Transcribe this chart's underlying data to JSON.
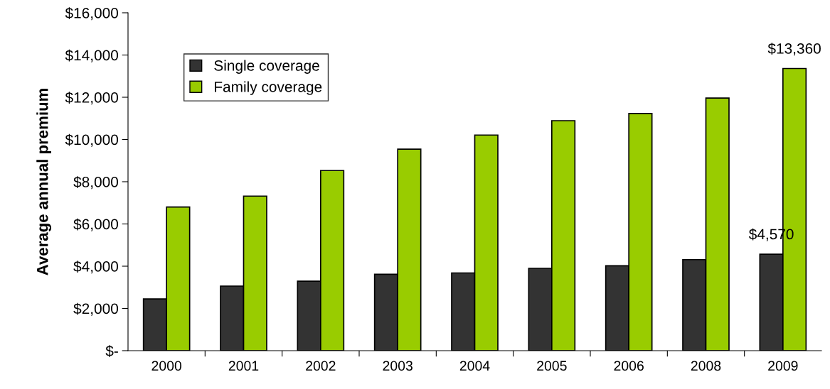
{
  "chart_data": {
    "type": "bar",
    "ylabel": "Average annual premium",
    "categories": [
      "2000",
      "2001",
      "2002",
      "2003",
      "2004",
      "2005",
      "2006",
      "2008",
      "2009"
    ],
    "series": [
      {
        "name": "Single coverage",
        "color": "#333333",
        "values": [
          2450,
          3060,
          3290,
          3620,
          3680,
          3900,
          4020,
          4310,
          4570
        ],
        "value_labels": [
          null,
          null,
          null,
          null,
          null,
          null,
          null,
          null,
          "$4,570"
        ]
      },
      {
        "name": "Family coverage",
        "color": "#99cc00",
        "values": [
          6800,
          7320,
          8530,
          9540,
          10210,
          10890,
          11230,
          11960,
          13360
        ],
        "value_labels": [
          null,
          null,
          null,
          null,
          null,
          null,
          null,
          null,
          "$13,360"
        ]
      }
    ],
    "ylim": [
      0,
      16000
    ],
    "yticks": [
      {
        "value": 0,
        "label": "$-"
      },
      {
        "value": 2000,
        "label": "$2,000"
      },
      {
        "value": 4000,
        "label": "$4,000"
      },
      {
        "value": 6000,
        "label": "$6,000"
      },
      {
        "value": 8000,
        "label": "$8,000"
      },
      {
        "value": 10000,
        "label": "$10,000"
      },
      {
        "value": 12000,
        "label": "$12,000"
      },
      {
        "value": 14000,
        "label": "$14,000"
      },
      {
        "value": 16000,
        "label": "$16,000"
      }
    ],
    "grid": false,
    "legend": "top left"
  }
}
